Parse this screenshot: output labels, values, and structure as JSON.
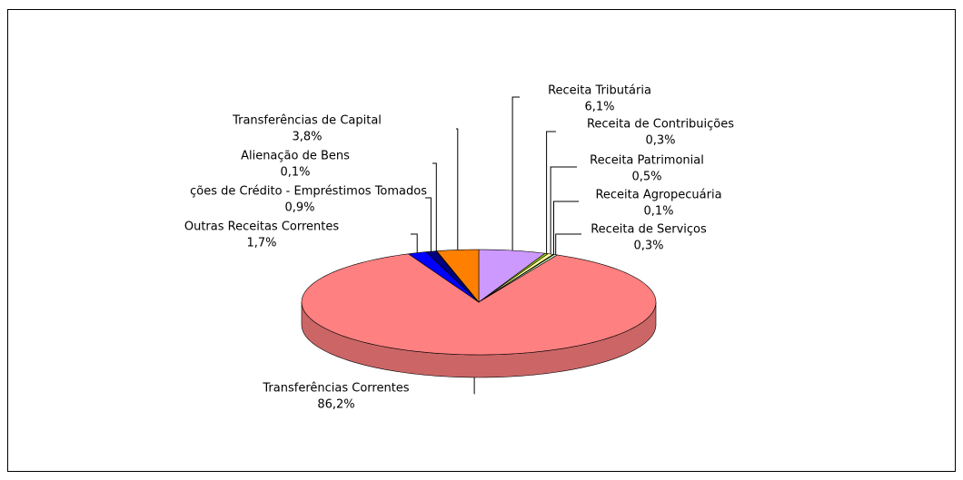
{
  "chart_data": {
    "type": "pie",
    "categories": [
      "Receita Tributária",
      "Receita de Contribuições",
      "Receita Patrimonial",
      "Receita Agropecuária",
      "Receita de Serviços",
      "Transferências Correntes",
      "Outras Receitas Correntes",
      "ções de Crédito - Empréstimos Tomados",
      "Alienação de Bens",
      "Transferências de Capital"
    ],
    "values": [
      6.1,
      0.3,
      0.5,
      0.1,
      0.3,
      86.2,
      1.7,
      0.9,
      0.1,
      3.8
    ],
    "value_labels": [
      "6,1%",
      "0,3%",
      "0,5%",
      "0,1%",
      "0,3%",
      "86,2%",
      "1,7%",
      "0,9%",
      "0,1%",
      "3,8%"
    ],
    "colors": [
      "#cc99ff",
      "#99cc00",
      "#ffff99",
      "#33cccc",
      "#ccffcc",
      "#ff8080",
      "#0000ff",
      "#000080",
      "#800080",
      "#ff8000"
    ]
  }
}
